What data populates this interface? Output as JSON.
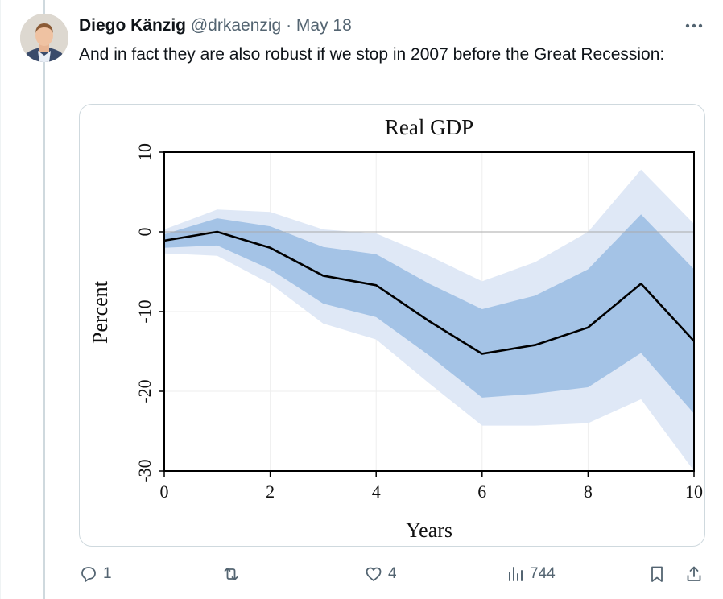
{
  "tweet": {
    "author_name": "Diego Känzig",
    "handle": "@drkaenzig",
    "separator": "·",
    "date": "May 18",
    "text": "And in fact they are also robust if we stop in 2007 before the Great Recession:"
  },
  "actions": {
    "replies": "1",
    "likes": "4",
    "views": "744"
  },
  "colors": {
    "outer_band": "#dfe8f6",
    "inner_band": "#a4c3e6",
    "line": "#000000"
  },
  "chart_data": {
    "type": "line",
    "title": "Real GDP",
    "xlabel": "Years",
    "ylabel": "Percent",
    "xlim": [
      0,
      10
    ],
    "ylim": [
      -30,
      10
    ],
    "xticks": [
      0,
      2,
      4,
      6,
      8,
      10
    ],
    "yticks": [
      10,
      0,
      -10,
      -20,
      -30
    ],
    "x": [
      0,
      1,
      2,
      3,
      4,
      5,
      6,
      7,
      8,
      9,
      10
    ],
    "series": [
      {
        "values": [
          -1.1,
          0.0,
          -2.0,
          -5.5,
          -6.7,
          -11.2,
          -15.3,
          -14.2,
          -12.0,
          -6.5,
          -13.7
        ]
      }
    ],
    "bands": [
      {
        "lower": [
          -2.7,
          -3.0,
          -6.5,
          -11.5,
          -13.5,
          -19.0,
          -24.3,
          -24.3,
          -24.0,
          -21.0,
          -30.0
        ],
        "upper": [
          0.3,
          2.8,
          2.5,
          0.3,
          -0.2,
          -3.0,
          -6.2,
          -3.8,
          0.0,
          7.8,
          1.0
        ]
      },
      {
        "lower": [
          -2.0,
          -1.7,
          -4.7,
          -9.0,
          -10.7,
          -15.5,
          -20.8,
          -20.3,
          -19.5,
          -15.2,
          -22.8
        ],
        "upper": [
          -0.3,
          1.7,
          0.7,
          -1.9,
          -2.8,
          -6.5,
          -9.7,
          -8.0,
          -4.7,
          2.2,
          -4.7
        ]
      }
    ],
    "grid": true,
    "zero_line": true
  }
}
